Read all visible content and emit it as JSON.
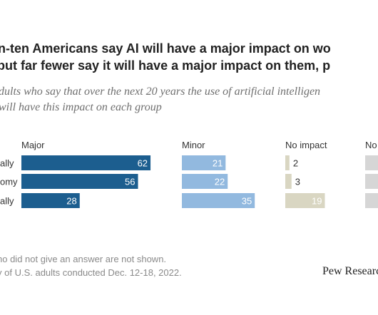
{
  "title": {
    "line1": "-in-ten Americans say AI will have a major impact on wo",
    "line2": ", but far fewer say it will have a major impact on them, p"
  },
  "subtitle": {
    "line1": "dults who say that over the next 20 years the use of artificial intelligen",
    "line2": "will have this impact on each group"
  },
  "notes": {
    "line1": "ho did not give an answer are not shown.",
    "line2": "y of U.S. adults conducted Dec. 12-18, 2022."
  },
  "source_logo": "Pew Research",
  "colors": {
    "major": "#1c5e8f",
    "minor": "#92b9df",
    "no_impact": "#d9d6c2",
    "not_sure": "#d6d6d6"
  },
  "chart_data": {
    "type": "bar",
    "stacking": "none",
    "orientation": "horizontal",
    "categories": [
      "ally",
      "omy",
      "ally"
    ],
    "series": [
      {
        "name": "Major",
        "values": [
          62,
          56,
          28
        ]
      },
      {
        "name": "Minor",
        "values": [
          21,
          22,
          35
        ]
      },
      {
        "name": "No impact",
        "values": [
          2,
          3,
          19
        ]
      },
      {
        "name": "No",
        "values": [
          null,
          null,
          null
        ]
      }
    ]
  }
}
